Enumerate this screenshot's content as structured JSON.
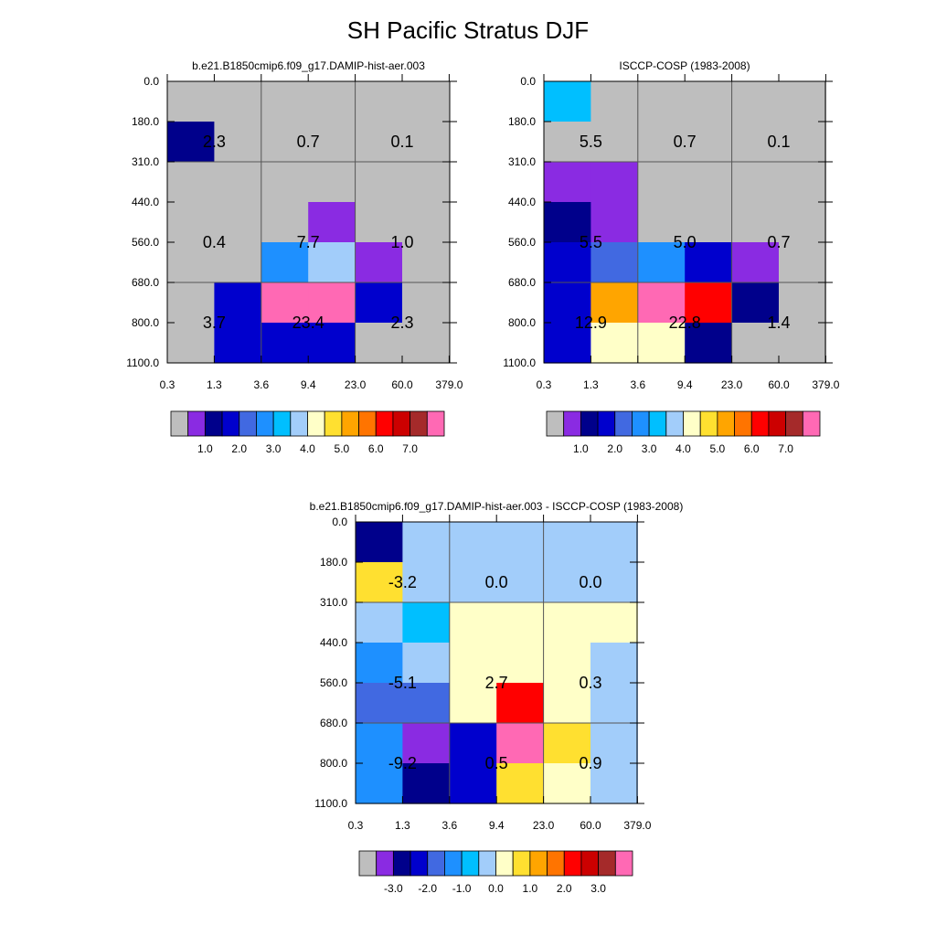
{
  "title": "SH Pacific Stratus DJF",
  "palette": [
    "#bebebe",
    "#8a2be2",
    "#00008b",
    "#0000cd",
    "#4169e1",
    "#1e90ff",
    "#00bfff",
    "#a2cdfa",
    "#ffffc8",
    "#ffe030",
    "#ffa500",
    "#ff7400",
    "#ff0000",
    "#cc0000",
    "#a52a2a",
    "#ff69b4"
  ],
  "chart_data": [
    {
      "type": "heatmap",
      "title": "b.e21.B1850cmip6.f09_g17.DAMIP-hist-aer.003",
      "x_ticks": [
        "0.3",
        "1.3",
        "3.6",
        "9.4",
        "23.0",
        "60.0",
        "379.0"
      ],
      "y_ticks": [
        "0.0",
        "180.0",
        "310.0",
        "440.0",
        "560.0",
        "680.0",
        "800.0",
        "1100.0"
      ],
      "cell_colors": [
        [
          0,
          0,
          0,
          0,
          0,
          0
        ],
        [
          2,
          0,
          0,
          0,
          0,
          0
        ],
        [
          0,
          0,
          0,
          0,
          0,
          0
        ],
        [
          0,
          0,
          0,
          1,
          0,
          0
        ],
        [
          0,
          0,
          5,
          7,
          1,
          0
        ],
        [
          0,
          3,
          15,
          15,
          3,
          0
        ],
        [
          0,
          3,
          3,
          3,
          0,
          0
        ]
      ],
      "annotations": [
        "2.3",
        "0.7",
        "0.1",
        "0.4",
        "7.7",
        "1.0",
        "3.7",
        "23.4",
        "2.3"
      ],
      "colorbar_labels": [
        "1.0",
        "2.0",
        "3.0",
        "4.0",
        "5.0",
        "6.0",
        "7.0"
      ]
    },
    {
      "type": "heatmap",
      "title": "ISCCP-COSP (1983-2008)",
      "x_ticks": [
        "0.3",
        "1.3",
        "3.6",
        "9.4",
        "23.0",
        "60.0",
        "379.0"
      ],
      "y_ticks": [
        "0.0",
        "180.0",
        "310.0",
        "440.0",
        "560.0",
        "680.0",
        "800.0",
        "1100.0"
      ],
      "cell_colors": [
        [
          6,
          0,
          0,
          0,
          0,
          0
        ],
        [
          0,
          0,
          0,
          0,
          0,
          0
        ],
        [
          1,
          1,
          0,
          0,
          0,
          0
        ],
        [
          2,
          1,
          0,
          0,
          0,
          0
        ],
        [
          3,
          4,
          5,
          3,
          1,
          0
        ],
        [
          3,
          10,
          15,
          12,
          2,
          0
        ],
        [
          3,
          8,
          8,
          2,
          0,
          0
        ]
      ],
      "annotations": [
        "5.5",
        "0.7",
        "0.1",
        "5.5",
        "5.0",
        "0.7",
        "12.9",
        "22.8",
        "1.4"
      ],
      "colorbar_labels": [
        "1.0",
        "2.0",
        "3.0",
        "4.0",
        "5.0",
        "6.0",
        "7.0"
      ]
    },
    {
      "type": "heatmap",
      "title": "b.e21.B1850cmip6.f09_g17.DAMIP-hist-aer.003 - ISCCP-COSP (1983-2008)",
      "x_ticks": [
        "0.3",
        "1.3",
        "3.6",
        "9.4",
        "23.0",
        "60.0",
        "379.0"
      ],
      "y_ticks": [
        "0.0",
        "180.0",
        "310.0",
        "440.0",
        "560.0",
        "680.0",
        "800.0",
        "1100.0"
      ],
      "cell_colors": [
        [
          2,
          7,
          7,
          7,
          7,
          7
        ],
        [
          9,
          7,
          7,
          7,
          7,
          7
        ],
        [
          7,
          6,
          8,
          8,
          8,
          8
        ],
        [
          5,
          7,
          8,
          8,
          8,
          7
        ],
        [
          4,
          4,
          8,
          12,
          8,
          7
        ],
        [
          5,
          1,
          3,
          15,
          9,
          7
        ],
        [
          5,
          2,
          3,
          9,
          8,
          7
        ]
      ],
      "annotations": [
        "-3.2",
        "0.0",
        "0.0",
        "-5.1",
        "2.7",
        "0.3",
        "-9.2",
        "0.5",
        "0.9"
      ],
      "colorbar_labels": [
        "-3.0",
        "-2.0",
        "-1.0",
        "0.0",
        "1.0",
        "2.0",
        "3.0"
      ]
    }
  ]
}
